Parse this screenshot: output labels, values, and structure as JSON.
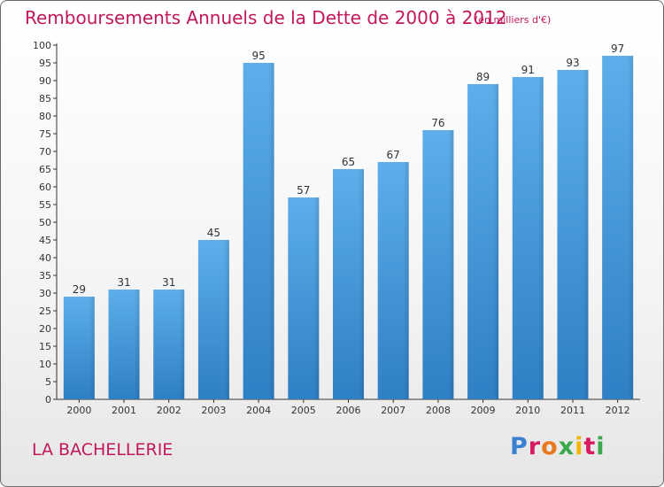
{
  "title": "Remboursements Annuels de la Dette de 2000 à 2012",
  "unit": "(en milliers d'€)",
  "place": "LA BACHELLERIE",
  "logo": {
    "text": "Proxiti",
    "colors": [
      "#3a7fd0",
      "#e8781e",
      "#3aa84a",
      "#d81b60",
      "#f2b600"
    ]
  },
  "chart_data": {
    "type": "bar",
    "title": "Remboursements Annuels de la Dette de 2000 à 2012",
    "xlabel": "",
    "ylabel": "",
    "categories": [
      "2000",
      "2001",
      "2002",
      "2003",
      "2004",
      "2005",
      "2006",
      "2007",
      "2008",
      "2009",
      "2010",
      "2011",
      "2012"
    ],
    "values": [
      29,
      31,
      31,
      45,
      95,
      57,
      65,
      67,
      76,
      89,
      91,
      93,
      97
    ],
    "ylim": [
      0,
      100
    ],
    "ytick_step": 5,
    "grid": false,
    "legend": "none",
    "bar_color": "#4a9fe0"
  }
}
